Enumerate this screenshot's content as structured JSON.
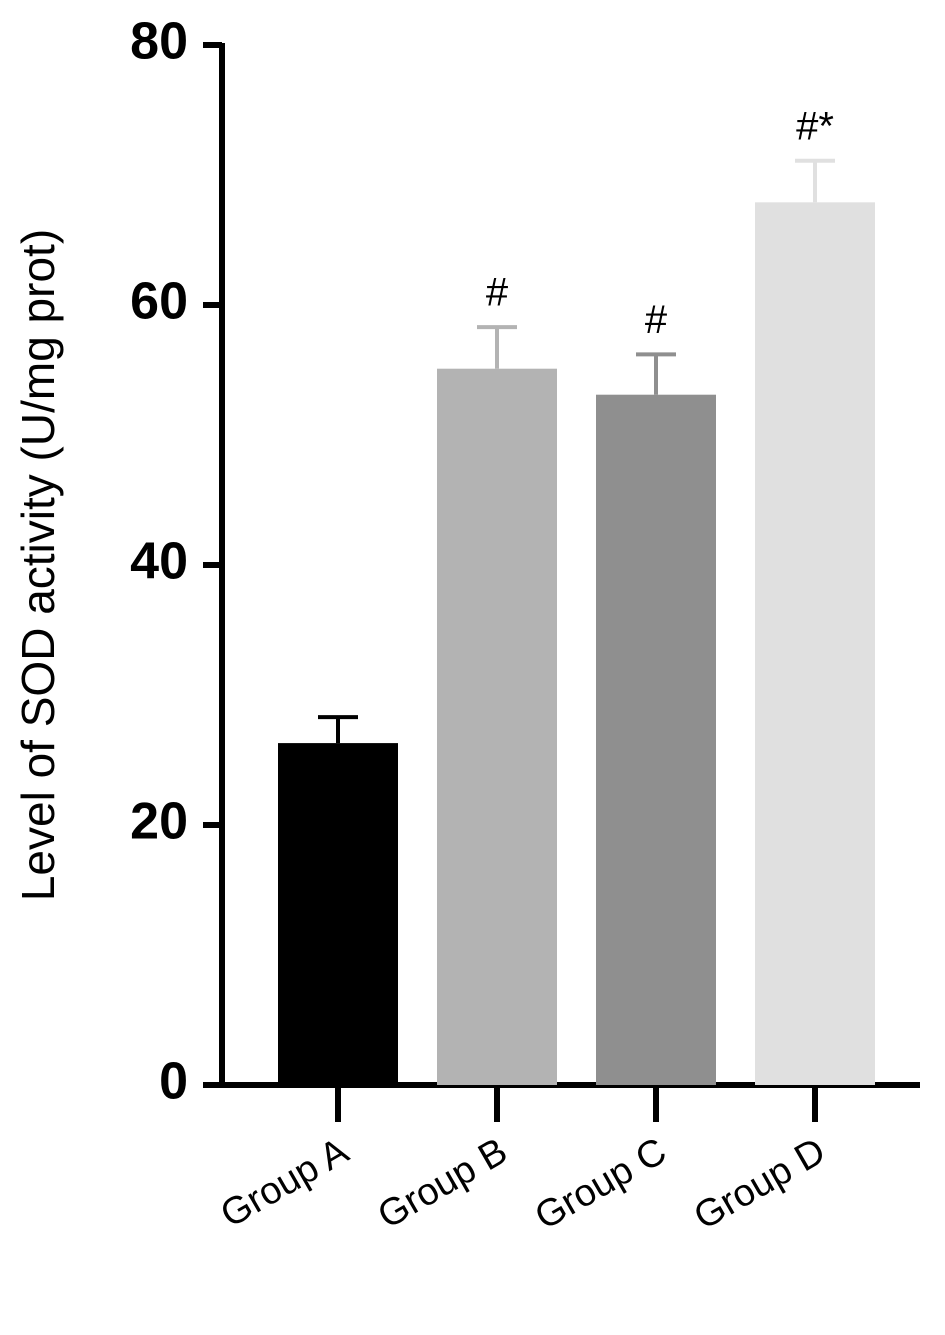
{
  "chart_data": {
    "type": "bar",
    "y_label": "Level of SOD activity (U/mg prot)",
    "categories": [
      "Group A",
      "Group B",
      "Group C",
      "Group D"
    ],
    "values": [
      26.3,
      55.1,
      53.1,
      67.9
    ],
    "errors": [
      2.0,
      3.2,
      3.1,
      3.2
    ],
    "annotations": [
      null,
      "#",
      "#",
      "#*"
    ],
    "colors": [
      "#000000",
      "#b3b3b3",
      "#8f8f8f",
      "#e0e0e0"
    ],
    "ylim": [
      0,
      80
    ],
    "yticks": [
      0,
      20,
      40,
      60,
      80
    ]
  }
}
